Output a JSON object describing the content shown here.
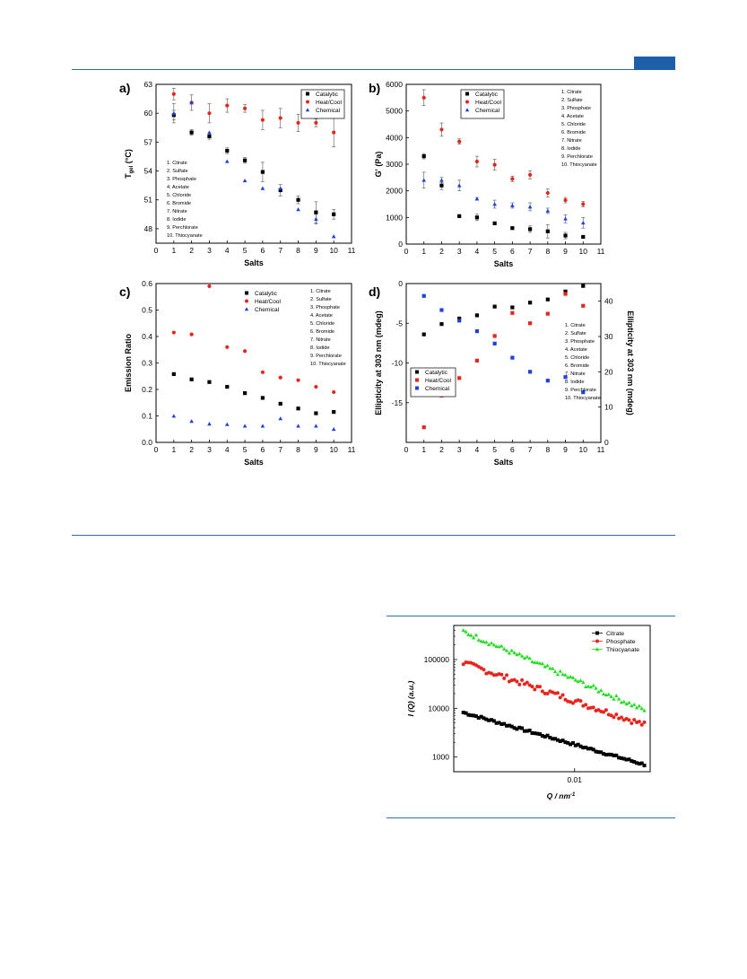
{
  "colors": {
    "black": "#000000",
    "red": "#e8241c",
    "blue": "#1f3fe0",
    "green": "#22dd22",
    "rule": "#2f6eb4"
  },
  "chart_data": [
    {
      "panel_label": "a)",
      "type": "scatter",
      "xlabel": "Salts",
      "ylabel": "T",
      "ylabel_sub": "gel",
      "ylabel_unit": "(°C)",
      "xlim": [
        0,
        11
      ],
      "ylim": [
        46.5,
        63
      ],
      "xticks": [
        0,
        1,
        2,
        3,
        4,
        5,
        6,
        7,
        8,
        9,
        10,
        11
      ],
      "yticks": [
        48,
        51,
        54,
        57,
        60,
        63
      ],
      "grid": false,
      "legend": {
        "position": "top-right",
        "entries": [
          "Catalytic",
          "Heat/Cool",
          "Chemical"
        ]
      },
      "salt_list": [
        "1. Citrate",
        "2. Sulfate",
        "3. Phosphate",
        "4. Acetate",
        "5. Chloride",
        "6. Bromide",
        "7. Nitrate",
        "8. Iodide",
        "9. Perchlorate",
        "10. Thiocyanate"
      ],
      "salt_list_position": "left-middle",
      "series": [
        {
          "name": "Catalytic",
          "marker": "square",
          "color": "black",
          "x": [
            1,
            2,
            3,
            4,
            5,
            6,
            7,
            8,
            9,
            10
          ],
          "y": [
            59.8,
            58.0,
            57.6,
            56.1,
            55.1,
            53.9,
            52.0,
            51.0,
            49.7,
            49.5
          ],
          "err": [
            0.5,
            0.3,
            0.3,
            0.3,
            0.3,
            1.0,
            0.6,
            0.4,
            1.1,
            0.5
          ]
        },
        {
          "name": "Heat/Cool",
          "marker": "circle",
          "color": "red",
          "x": [
            1,
            2,
            3,
            4,
            5,
            6,
            7,
            8,
            9,
            10
          ],
          "y": [
            62.0,
            61.1,
            60.0,
            60.8,
            60.5,
            59.3,
            59.5,
            59.0,
            59.0,
            58.0
          ],
          "err": [
            0.6,
            0.8,
            1.0,
            0.7,
            0.4,
            1.0,
            1.0,
            0.9,
            0.4,
            1.5
          ]
        },
        {
          "name": "Chemical",
          "marker": "triangle",
          "color": "blue",
          "x": [
            1,
            2,
            3,
            4,
            5,
            6,
            7,
            8,
            9,
            10
          ],
          "y": [
            60.0,
            61.1,
            58.0,
            55.0,
            53.0,
            52.2,
            52.2,
            50.0,
            49.0,
            47.2
          ],
          "err": [
            1.0,
            0,
            0,
            0,
            0,
            0,
            0,
            0,
            0.5,
            0
          ]
        }
      ]
    },
    {
      "panel_label": "b)",
      "type": "scatter",
      "xlabel": "Salts",
      "ylabel": "G' (Pa)",
      "xlim": [
        0,
        11
      ],
      "ylim": [
        0,
        6000
      ],
      "xticks": [
        0,
        1,
        2,
        3,
        4,
        5,
        6,
        7,
        8,
        9,
        10,
        11
      ],
      "yticks": [
        0,
        1000,
        2000,
        3000,
        4000,
        5000,
        6000
      ],
      "grid": false,
      "legend": {
        "position": "top-left",
        "entries": [
          "Catalytic",
          "Heat/Cool",
          "Chemical"
        ]
      },
      "salt_list": [
        "1. Citrate",
        "2. Sulfate",
        "3. Phosphate",
        "4. Acetate",
        "5. Chloride",
        "6. Bromide",
        "7. Nitrate",
        "8. Iodide",
        "9. Perchlorate",
        "10. Thiocyanate"
      ],
      "salt_list_position": "top-right",
      "series": [
        {
          "name": "Catalytic",
          "marker": "square",
          "color": "black",
          "x": [
            1,
            2,
            3,
            4,
            5,
            6,
            7,
            8,
            9,
            10
          ],
          "y": [
            3300,
            2200,
            1050,
            1000,
            780,
            600,
            560,
            480,
            320,
            270
          ],
          "err": [
            100,
            150,
            50,
            120,
            50,
            50,
            120,
            250,
            120,
            50
          ]
        },
        {
          "name": "Heat/Cool",
          "marker": "circle",
          "color": "red",
          "x": [
            1,
            2,
            3,
            4,
            5,
            6,
            7,
            8,
            9,
            10
          ],
          "y": [
            5500,
            4300,
            3850,
            3100,
            2980,
            2450,
            2600,
            1920,
            1650,
            1500
          ],
          "err": [
            300,
            250,
            100,
            200,
            200,
            100,
            150,
            150,
            100,
            100
          ]
        },
        {
          "name": "Chemical",
          "marker": "triangle",
          "color": "blue",
          "x": [
            1,
            2,
            3,
            4,
            5,
            6,
            7,
            8,
            9,
            10
          ],
          "y": [
            2400,
            2400,
            2200,
            1700,
            1500,
            1450,
            1400,
            1250,
            950,
            800
          ],
          "err": [
            300,
            100,
            200,
            50,
            150,
            100,
            150,
            100,
            150,
            200
          ]
        }
      ]
    },
    {
      "panel_label": "c)",
      "type": "scatter",
      "xlabel": "Salts",
      "ylabel": "Emission Ratio",
      "xlim": [
        0,
        11
      ],
      "ylim": [
        0,
        0.6
      ],
      "xticks": [
        0,
        1,
        2,
        3,
        4,
        5,
        6,
        7,
        8,
        9,
        10,
        11
      ],
      "yticks": [
        0.0,
        0.1,
        0.2,
        0.3,
        0.4,
        0.5,
        0.6
      ],
      "ytick_labels": [
        "0.0",
        "0.1",
        "0.2",
        "0.3",
        "0.4",
        "0.5",
        "0.6"
      ],
      "grid": false,
      "legend": {
        "position": "top-center",
        "entries": [
          "Catalytic",
          "Heat/Cool",
          "Chemical"
        ]
      },
      "salt_list": [
        "1. Citrate",
        "2. Sulfate",
        "3. Phosphate",
        "4. Acetate",
        "5. Chloride",
        "6. Bromide",
        "7. Nitrate",
        "8. Iodide",
        "9. Perchlorate",
        "10. Thiocyanate"
      ],
      "salt_list_position": "top-right",
      "series": [
        {
          "name": "Catalytic",
          "marker": "square",
          "color": "black",
          "x": [
            1,
            2,
            3,
            4,
            5,
            6,
            7,
            8,
            9,
            10
          ],
          "y": [
            0.258,
            0.238,
            0.228,
            0.21,
            0.186,
            0.168,
            0.146,
            0.128,
            0.11,
            0.115
          ]
        },
        {
          "name": "Heat/Cool",
          "marker": "circle",
          "color": "red",
          "x": [
            1,
            2,
            3,
            4,
            5,
            6,
            7,
            8,
            9,
            10
          ],
          "y": [
            0.415,
            0.408,
            0.59,
            0.36,
            0.345,
            0.265,
            0.245,
            0.235,
            0.21,
            0.19
          ]
        },
        {
          "name": "Chemical",
          "marker": "triangle",
          "color": "blue",
          "x": [
            1,
            2,
            3,
            4,
            5,
            6,
            7,
            8,
            9,
            10
          ],
          "y": [
            0.1,
            0.08,
            0.07,
            0.068,
            0.062,
            0.062,
            0.09,
            0.062,
            0.062,
            0.05
          ]
        }
      ]
    },
    {
      "panel_label": "d)",
      "type": "scatter",
      "xlabel": "Salts",
      "ylabel": "Ellipticity at 303 nm (mdeg)",
      "ylabel_right": "Ellipticity at 303 nm (mdeg)",
      "xlim": [
        0,
        11
      ],
      "ylim": [
        -20,
        0
      ],
      "ylim_right": [
        0,
        45
      ],
      "xticks": [
        0,
        1,
        2,
        3,
        4,
        5,
        6,
        7,
        8,
        9,
        10,
        11
      ],
      "yticks": [
        -15,
        -10,
        -5,
        0
      ],
      "yticks_right": [
        0,
        10,
        20,
        30,
        40
      ],
      "grid": false,
      "legend": {
        "position": "middle-left",
        "entries": [
          "Catalytic",
          "Heat/Cool",
          "Chemical"
        ]
      },
      "salt_list": [
        "1. Citrate",
        "2. Sulfate",
        "3. Phosphate",
        "4. Acetate",
        "5. Chloride",
        "6. Bromide",
        "7. Nitrate",
        "8. Iodide",
        "9. Perchlorate",
        "10. Thiocyanate"
      ],
      "salt_list_position": "right-middle",
      "series": [
        {
          "name": "Catalytic",
          "marker": "square",
          "color": "black",
          "axis": "left",
          "x": [
            1,
            2,
            3,
            4,
            5,
            6,
            7,
            8,
            9,
            10
          ],
          "y": [
            -6.4,
            -5.1,
            -4.4,
            -4.0,
            -2.9,
            -3.0,
            -2.4,
            -2.0,
            -1.0,
            -0.3
          ]
        },
        {
          "name": "Heat/Cool",
          "marker": "square",
          "color": "red",
          "axis": "left",
          "x": [
            1,
            2,
            3,
            4,
            5,
            6,
            7,
            8,
            9,
            10
          ],
          "y": [
            -18.1,
            -14.1,
            -11.9,
            -9.7,
            -6.6,
            -3.7,
            -5.0,
            -3.8,
            -1.3,
            -2.8
          ]
        },
        {
          "name": "Chemical",
          "marker": "square",
          "color": "blue",
          "axis": "right",
          "x": [
            1,
            2,
            3,
            4,
            5,
            6,
            7,
            8,
            9,
            10
          ],
          "y": [
            41.5,
            37.5,
            34.5,
            31.5,
            28,
            24,
            20,
            17.5,
            18.5,
            14.2
          ]
        }
      ]
    },
    {
      "panel_label": "",
      "type": "scatter",
      "scale": "log-log",
      "xlabel": "Q / nm",
      "xlabel_sup": "-1",
      "ylabel": "I (Q) (a.u.)",
      "xlim": [
        0.0042,
        0.0172
      ],
      "ylim": [
        500,
        500000
      ],
      "xticks": [
        0.01
      ],
      "xtick_labels": [
        "0.01"
      ],
      "yticks": [
        1000,
        10000,
        100000
      ],
      "ytick_labels": [
        "1000",
        "10000",
        "100000"
      ],
      "grid": false,
      "legend": {
        "position": "top-right",
        "entries": [
          "Citrate",
          "Phosphate",
          "Thiocyanate"
        ]
      },
      "series": [
        {
          "name": "Citrate",
          "marker": "square",
          "color": "black",
          "q_start": 0.0045,
          "q_end": 0.0165,
          "i_start": 8200,
          "i_end": 700,
          "noise": 0.025
        },
        {
          "name": "Phosphate",
          "marker": "circle",
          "color": "red",
          "q_start": 0.0045,
          "q_end": 0.0165,
          "i_start": 85000,
          "i_end": 4600,
          "noise": 0.06
        },
        {
          "name": "Thiocyanate",
          "marker": "triangle",
          "color": "green",
          "q_start": 0.0045,
          "q_end": 0.0165,
          "i_start": 380000,
          "i_end": 9200,
          "noise": 0.05
        }
      ]
    }
  ]
}
